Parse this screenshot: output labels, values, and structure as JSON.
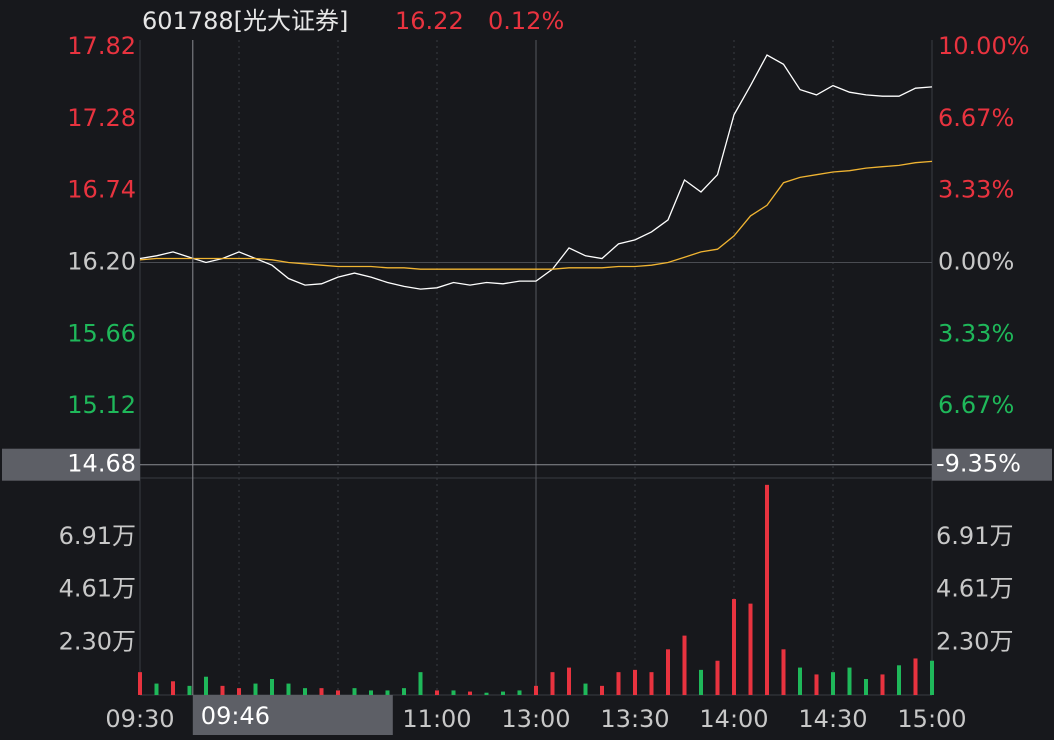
{
  "chart_data": {
    "type": "line",
    "title": "601788[光大证券]",
    "last_price": 16.22,
    "change": {
      "value": 0.12,
      "label": "0.12%"
    },
    "xlim": [
      0,
      240
    ],
    "xticks": [
      {
        "value": 0,
        "label": "09:30"
      },
      {
        "value": 90,
        "label": "11:00"
      },
      {
        "value": 120,
        "label": "13:00"
      },
      {
        "value": 150,
        "label": "13:30"
      },
      {
        "value": 180,
        "label": "14:00"
      },
      {
        "value": 210,
        "label": "14:30"
      },
      {
        "value": 240,
        "label": "15:00"
      }
    ],
    "xgrid": [
      30,
      60,
      90,
      150,
      180,
      210
    ],
    "session_break": 120,
    "ylim": [
      14.58,
      17.82
    ],
    "yticks": [
      17.82,
      17.28,
      16.74,
      {
        "value": 16.2,
        "label": "16.20"
      },
      15.66,
      15.12
    ],
    "y2lim": [
      -10,
      10
    ],
    "y2ticks": [
      {
        "value": 10,
        "label": "10.00%"
      },
      {
        "value": 6.67,
        "label": "6.67%"
      },
      {
        "value": 3.33,
        "label": "3.33%"
      },
      {
        "value": 0,
        "label": "0.00%"
      },
      {
        "value": -3.33,
        "label": "3.33%"
      },
      {
        "value": -6.67,
        "label": "6.67%"
      }
    ],
    "up_color": "#e8333f",
    "down_color": "#1fb85a",
    "flat_color": "#c8c8c8",
    "x": [
      0,
      5,
      10,
      15,
      20,
      25,
      30,
      35,
      40,
      45,
      50,
      55,
      60,
      65,
      70,
      75,
      80,
      85,
      90,
      95,
      100,
      105,
      110,
      115,
      120,
      125,
      130,
      135,
      140,
      145,
      150,
      155,
      160,
      165,
      170,
      175,
      180,
      185,
      190,
      195,
      200,
      205,
      210,
      215,
      220,
      225,
      230,
      235,
      240
    ],
    "series": [
      {
        "color": "#ffffff",
        "values": [
          16.23,
          16.25,
          16.28,
          16.24,
          16.2,
          16.23,
          16.28,
          16.23,
          16.18,
          16.08,
          16.03,
          16.04,
          16.09,
          16.12,
          16.09,
          16.05,
          16.02,
          16.0,
          16.01,
          16.05,
          16.03,
          16.05,
          16.04,
          16.06,
          16.06,
          16.15,
          16.31,
          16.25,
          16.23,
          16.34,
          16.37,
          16.43,
          16.52,
          16.82,
          16.73,
          16.86,
          17.31,
          17.53,
          17.76,
          17.69,
          17.5,
          17.46,
          17.53,
          17.48,
          17.46,
          17.45,
          17.45,
          17.51,
          17.52
        ]
      },
      {
        "color": "#f0b432",
        "values": [
          16.22,
          16.23,
          16.23,
          16.23,
          16.23,
          16.23,
          16.23,
          16.23,
          16.22,
          16.2,
          16.19,
          16.18,
          16.17,
          16.17,
          16.17,
          16.16,
          16.16,
          16.15,
          16.15,
          16.15,
          16.15,
          16.15,
          16.15,
          16.15,
          16.15,
          16.15,
          16.16,
          16.16,
          16.16,
          16.17,
          16.17,
          16.18,
          16.2,
          16.24,
          16.28,
          16.3,
          16.4,
          16.55,
          16.63,
          16.8,
          16.84,
          16.86,
          16.88,
          16.89,
          16.91,
          16.92,
          16.93,
          16.95,
          16.96
        ]
      }
    ],
    "volume": {
      "ylim": [
        0,
        9.5
      ],
      "yticks": [
        {
          "value": 6.91,
          "label": "6.91万"
        },
        {
          "value": 4.61,
          "label": "4.61万"
        },
        {
          "value": 2.3,
          "label": "2.30万"
        }
      ],
      "values": [
        1.0,
        0.5,
        0.6,
        0.4,
        0.8,
        0.4,
        0.3,
        0.5,
        0.7,
        0.5,
        0.3,
        0.3,
        0.2,
        0.3,
        0.2,
        0.2,
        0.3,
        1.0,
        0.2,
        0.2,
        0.15,
        0.1,
        0.15,
        0.2,
        0.4,
        1.0,
        1.2,
        0.5,
        0.4,
        1.0,
        1.1,
        1.0,
        2.0,
        2.6,
        1.1,
        1.5,
        4.2,
        4.0,
        9.2,
        2.0,
        1.2,
        0.9,
        1.0,
        1.2,
        0.7,
        0.9,
        1.3,
        1.6,
        1.5
      ],
      "colors": [
        "#e8333f",
        "#1fb85a",
        "#e8333f",
        "#1fb85a",
        "#1fb85a",
        "#e8333f",
        "#e8333f",
        "#1fb85a",
        "#1fb85a",
        "#1fb85a",
        "#1fb85a",
        "#e8333f",
        "#e8333f",
        "#1fb85a",
        "#1fb85a",
        "#1fb85a",
        "#1fb85a",
        "#1fb85a",
        "#e8333f",
        "#1fb85a",
        "#e8333f",
        "#1fb85a",
        "#1fb85a",
        "#1fb85a",
        "#e8333f",
        "#e8333f",
        "#e8333f",
        "#1fb85a",
        "#e8333f",
        "#e8333f",
        "#e8333f",
        "#e8333f",
        "#e8333f",
        "#e8333f",
        "#1fb85a",
        "#e8333f",
        "#e8333f",
        "#e8333f",
        "#e8333f",
        "#e8333f",
        "#1fb85a",
        "#e8333f",
        "#1fb85a",
        "#1fb85a",
        "#1fb85a",
        "#e8333f",
        "#1fb85a",
        "#e8333f",
        "#1fb85a"
      ]
    },
    "crosshair": {
      "price": {
        "value": 14.68,
        "label": "14.68"
      },
      "percent": {
        "value": -9.35,
        "label": "-9.35%"
      },
      "time": {
        "value": 16,
        "label": "09:46"
      }
    }
  }
}
